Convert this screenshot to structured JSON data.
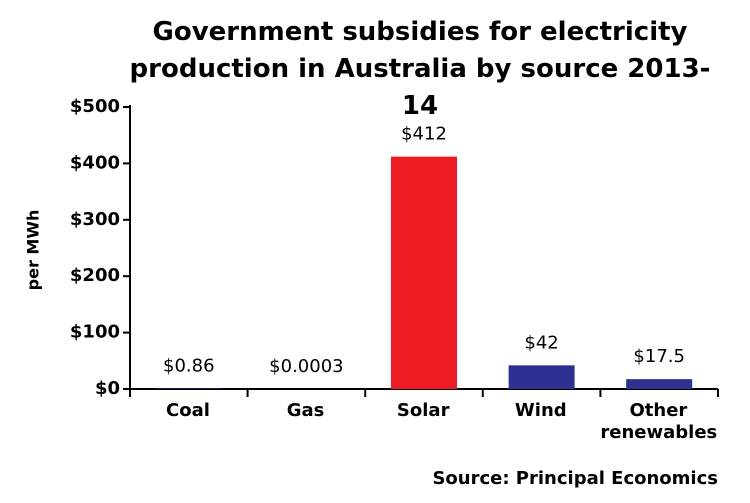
{
  "chart_data": {
    "type": "bar",
    "title": "Government subsidies for electricity production in Australia by source 2013-14",
    "y_label": "per MWh",
    "categories": [
      "Coal",
      "Gas",
      "Solar",
      "Wind",
      "Other renewables"
    ],
    "values": [
      0.86,
      0.0003,
      412,
      42,
      17.5
    ],
    "value_labels": [
      "$0.86",
      "$0.0003",
      "$412",
      "$42",
      "$17.5"
    ],
    "colors": [
      "#2e3192",
      "#2e3192",
      "#ed1c24",
      "#2e3192",
      "#2e3192"
    ],
    "ylim": [
      0,
      500
    ],
    "yticks": [
      {
        "value": 0,
        "label": "$0"
      },
      {
        "value": 100,
        "label": "$100"
      },
      {
        "value": 200,
        "label": "$200"
      },
      {
        "value": 300,
        "label": "$300"
      },
      {
        "value": 400,
        "label": "$400"
      },
      {
        "value": 500,
        "label": "$500"
      }
    ],
    "grid": false,
    "source": "Source: Principal Economics"
  }
}
